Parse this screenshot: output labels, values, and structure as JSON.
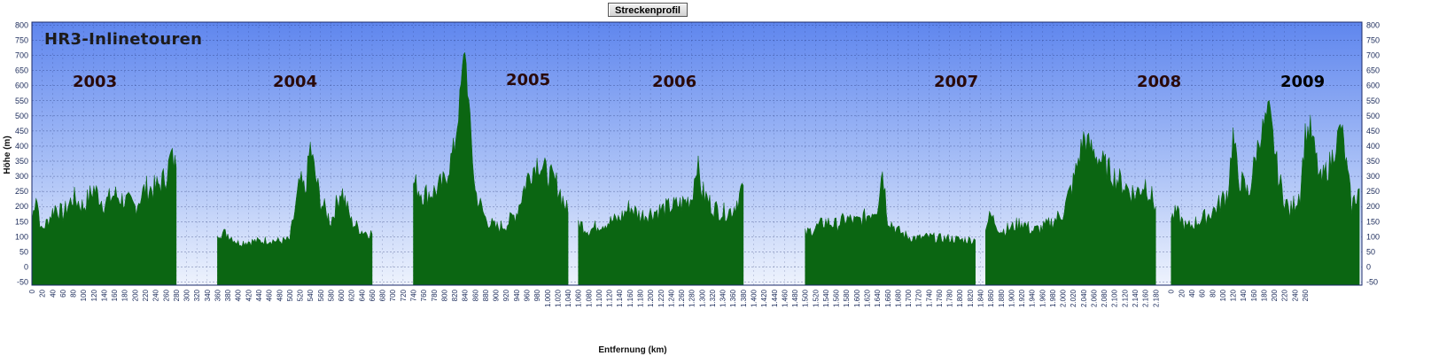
{
  "window": {
    "title_button": "Streckenprofil"
  },
  "overlay": {
    "brand": "HR3-Inlinetouren",
    "years": [
      "2003",
      "2004",
      "2005",
      "2006",
      "2007",
      "2008",
      "2009"
    ]
  },
  "colors": {
    "background_top": "#5f86ee",
    "background_bottom": "#eef3fd",
    "fill": "#0b6612",
    "grid": "#1a2a6a"
  },
  "chart_data": {
    "type": "area",
    "title": "Streckenprofil",
    "xlabel": "Entfernung (km)",
    "ylabel": "Höhe (m)",
    "ylim": [
      -60,
      810
    ],
    "yticks": [
      -50,
      0,
      50,
      100,
      150,
      200,
      250,
      300,
      350,
      400,
      450,
      500,
      550,
      600,
      650,
      700,
      750,
      800
    ],
    "xlim": [
      0,
      2580
    ],
    "grid": true,
    "x_tick_labels_main": [
      "0",
      "20",
      "40",
      "60",
      "80",
      "100",
      "120",
      "140",
      "160",
      "180",
      "200",
      "220",
      "240",
      "260",
      "280",
      "300",
      "320",
      "340",
      "360",
      "380",
      "400",
      "420",
      "440",
      "460",
      "480",
      "500",
      "520",
      "540",
      "560",
      "580",
      "600",
      "620",
      "640",
      "660",
      "680",
      "700",
      "720",
      "740",
      "760",
      "780",
      "800",
      "820",
      "840",
      "860",
      "880",
      "900",
      "920",
      "940",
      "960",
      "980",
      "1.000",
      "1.020",
      "1.040",
      "1.060",
      "1.080",
      "1.100",
      "1.120",
      "1.140",
      "1.160",
      "1.180",
      "1.200",
      "1.220",
      "1.240",
      "1.260",
      "1.280",
      "1.300",
      "1.320",
      "1.340",
      "1.360",
      "1.380",
      "1.400",
      "1.420",
      "1.440",
      "1.460",
      "1.480",
      "1.500",
      "1.520",
      "1.540",
      "1.560",
      "1.580",
      "1.600",
      "1.620",
      "1.640",
      "1.660",
      "1.680",
      "1.700",
      "1.720",
      "1.740",
      "1.760",
      "1.780",
      "1.800",
      "1.820",
      "1.840",
      "1.860",
      "1.880",
      "1.900",
      "1.920",
      "1.940",
      "1.960",
      "1.980",
      "2.000",
      "2.020",
      "2.040",
      "2.060",
      "2.080",
      "2.100",
      "2.120",
      "2.140",
      "2.160",
      "2.180"
    ],
    "x_tick_labels_2009": [
      "0",
      "20",
      "40",
      "60",
      "80",
      "100",
      "120",
      "140",
      "160",
      "180",
      "200",
      "220",
      "240",
      "260"
    ],
    "series": [
      {
        "label": "2003",
        "x": [
          0,
          8,
          18,
          30,
          45,
          60,
          80,
          100,
          120,
          140,
          160,
          180,
          200,
          220,
          240,
          260,
          270,
          280
        ],
        "y": [
          150,
          250,
          120,
          150,
          200,
          175,
          230,
          200,
          260,
          210,
          240,
          220,
          200,
          260,
          260,
          300,
          370,
          330
        ]
      },
      {
        "label": "2004",
        "x": [
          360,
          380,
          400,
          420,
          440,
          460,
          480,
          500,
          520,
          530,
          540,
          550,
          560,
          580,
          600,
          620,
          640,
          660
        ],
        "y": [
          115,
          110,
          80,
          85,
          85,
          90,
          85,
          90,
          280,
          250,
          400,
          300,
          220,
          150,
          260,
          150,
          120,
          110
        ]
      },
      {
        "label": "2005",
        "x": [
          740,
          760,
          780,
          800,
          820,
          830,
          840,
          850,
          860,
          880,
          900,
          920,
          940,
          960,
          980,
          1000,
          1020,
          1040
        ],
        "y": [
          280,
          240,
          250,
          280,
          400,
          550,
          730,
          470,
          250,
          160,
          130,
          140,
          180,
          290,
          350,
          310,
          270,
          180
        ]
      },
      {
        "label": "2006",
        "x": [
          1060,
          1080,
          1100,
          1120,
          1140,
          1160,
          1180,
          1200,
          1220,
          1240,
          1260,
          1280,
          1290,
          1300,
          1320,
          1340,
          1360,
          1380
        ],
        "y": [
          150,
          120,
          140,
          150,
          160,
          200,
          170,
          180,
          190,
          200,
          210,
          230,
          350,
          250,
          200,
          180,
          190,
          270
        ]
      },
      {
        "label": "2007",
        "x": [
          1500,
          1520,
          1540,
          1560,
          1580,
          1600,
          1620,
          1640,
          1650,
          1660,
          1680,
          1700,
          1720,
          1740,
          1760,
          1780,
          1800,
          1830
        ],
        "y": [
          110,
          130,
          150,
          140,
          160,
          150,
          170,
          200,
          330,
          160,
          120,
          100,
          95,
          100,
          95,
          95,
          90,
          90
        ]
      },
      {
        "label": "2008",
        "x": [
          1850,
          1860,
          1880,
          1900,
          1920,
          1940,
          1960,
          1980,
          2000,
          2020,
          2040,
          2060,
          2080,
          2100,
          2120,
          2140,
          2160,
          2180
        ],
        "y": [
          140,
          170,
          120,
          130,
          150,
          120,
          130,
          150,
          180,
          280,
          430,
          380,
          340,
          300,
          270,
          240,
          280,
          200
        ]
      },
      {
        "label": "2009",
        "x": [
          2210,
          2220,
          2240,
          2260,
          2280,
          2300,
          2320,
          2330,
          2340,
          2360,
          2380,
          2400,
          2420,
          2440,
          2460,
          2470,
          2480,
          2500,
          2520,
          2540,
          2560,
          2575
        ],
        "y": [
          160,
          180,
          130,
          150,
          170,
          200,
          250,
          440,
          300,
          240,
          420,
          520,
          280,
          180,
          250,
          440,
          460,
          280,
          350,
          470,
          200,
          260
        ]
      }
    ]
  }
}
